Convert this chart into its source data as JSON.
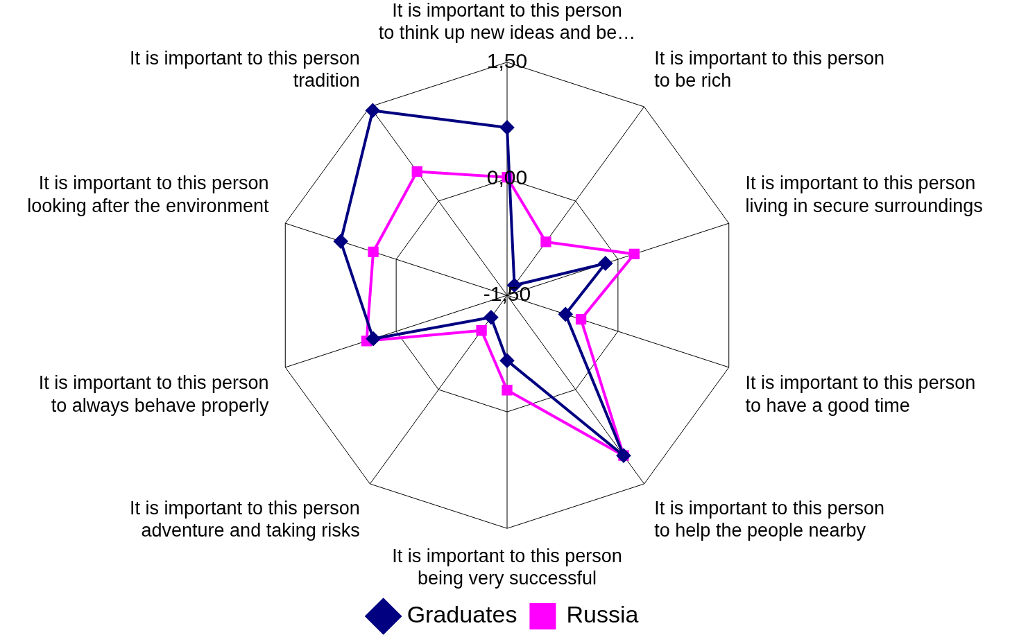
{
  "chart_data": {
    "type": "radar",
    "categories": [
      "It is important to this person to think up new ideas and be…",
      "It is important to this person to be rich",
      "It is important to this person living in secure surroundings",
      "It is important to this person to have a good time",
      "It is important to this person to help the people nearby",
      "It is important to this person being very successful",
      "It is important to this person adventure and taking risks",
      "It is important to this person to always behave properly",
      "It is important to this person looking after the environment",
      "It is important to this person tradition"
    ],
    "series": [
      {
        "name": "Graduates",
        "color": "#000080",
        "marker": "diamond",
        "values": [
          0.66,
          -1.34,
          -0.17,
          -0.71,
          1.05,
          -0.66,
          -1.15,
          0.31,
          0.75,
          1.44
        ]
      },
      {
        "name": "Russia",
        "color": "#ff00ff",
        "marker": "square",
        "values": [
          0.02,
          -0.65,
          0.22,
          -0.5,
          1.05,
          -0.28,
          -0.94,
          0.4,
          0.31,
          0.47
        ]
      }
    ],
    "ylim": [
      -1.5,
      1.5
    ],
    "yticks": [
      {
        "value": -1.5,
        "label": "-1,50"
      },
      {
        "value": 0,
        "label": "0,00"
      },
      {
        "value": 1.5,
        "label": "1,50"
      }
    ],
    "grid": true,
    "legend": "bottom",
    "line_style": "solid"
  }
}
